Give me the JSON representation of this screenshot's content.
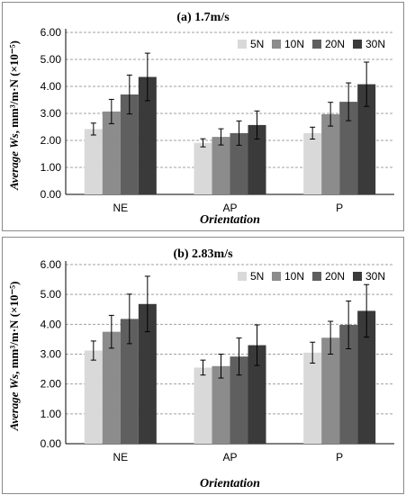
{
  "chart_data": [
    {
      "type": "bar",
      "title": "(a) 1.7m/s",
      "xlabel": "Orientation",
      "ylabel_prefix": "Average ",
      "ylabel_var": "Ws",
      "ylabel_rest": ", mm³/m·N (×10⁻⁵)",
      "categories": [
        "NE",
        "AP",
        "P"
      ],
      "ylim": [
        0,
        6
      ],
      "yticks": [
        "0.00",
        "1.00",
        "2.00",
        "3.00",
        "4.00",
        "5.00",
        "6.00"
      ],
      "grid": true,
      "legend_position": "top-right",
      "series": [
        {
          "name": "5N",
          "color": "#d9d9d9",
          "values": [
            2.42,
            1.91,
            2.27
          ],
          "errors": [
            0.22,
            0.15,
            0.22
          ]
        },
        {
          "name": "10N",
          "color": "#8c8c8c",
          "values": [
            3.07,
            2.13,
            2.97
          ],
          "errors": [
            0.45,
            0.3,
            0.44
          ]
        },
        {
          "name": "20N",
          "color": "#5f5f5f",
          "values": [
            3.7,
            2.27,
            3.43
          ],
          "errors": [
            0.72,
            0.45,
            0.7
          ]
        },
        {
          "name": "30N",
          "color": "#3a3a3a",
          "values": [
            4.35,
            2.57,
            4.08
          ],
          "errors": [
            0.88,
            0.52,
            0.82
          ]
        }
      ]
    },
    {
      "type": "bar",
      "title": "(b) 2.83m/s",
      "xlabel": "Orientation",
      "ylabel_prefix": "Average ",
      "ylabel_var": "Ws",
      "ylabel_rest": ", mm³/m·N (×10⁻⁵)",
      "categories": [
        "NE",
        "AP",
        "P"
      ],
      "ylim": [
        0,
        6
      ],
      "yticks": [
        "0.00",
        "1.00",
        "2.00",
        "3.00",
        "4.00",
        "5.00",
        "6.00"
      ],
      "grid": true,
      "legend_position": "top-right",
      "series": [
        {
          "name": "5N",
          "color": "#d9d9d9",
          "values": [
            3.12,
            2.55,
            3.05
          ],
          "errors": [
            0.32,
            0.25,
            0.35
          ]
        },
        {
          "name": "10N",
          "color": "#8c8c8c",
          "values": [
            3.75,
            2.6,
            3.55
          ],
          "errors": [
            0.55,
            0.4,
            0.55
          ]
        },
        {
          "name": "20N",
          "color": "#5f5f5f",
          "values": [
            4.18,
            2.92,
            3.98
          ],
          "errors": [
            0.83,
            0.62,
            0.8
          ]
        },
        {
          "name": "30N",
          "color": "#3a3a3a",
          "values": [
            4.68,
            3.3,
            4.45
          ],
          "errors": [
            0.93,
            0.68,
            0.88
          ]
        }
      ]
    }
  ]
}
